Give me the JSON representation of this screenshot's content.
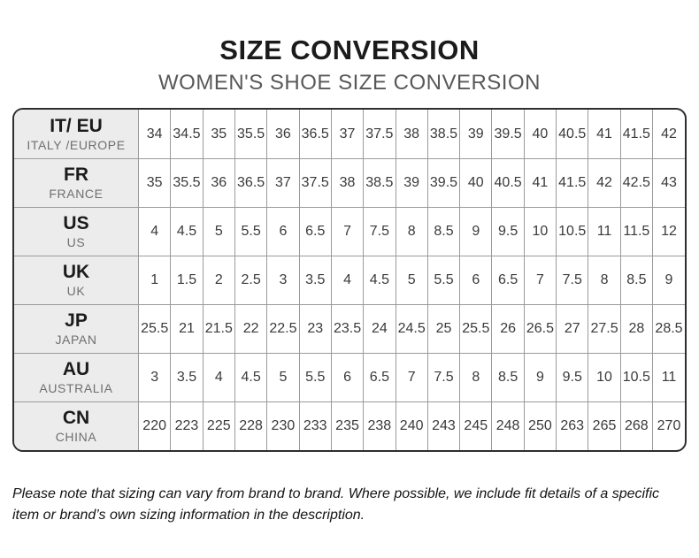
{
  "header": {
    "title": "SIZE CONVERSION",
    "subtitle": "WOMEN'S SHOE SIZE CONVERSION"
  },
  "chart_data": {
    "type": "table",
    "title": "SIZE CONVERSION",
    "subtitle": "WOMEN'S SHOE SIZE CONVERSION",
    "rows": [
      {
        "code": "IT/ EU",
        "region": "ITALY /EUROPE",
        "values": [
          "34",
          "34.5",
          "35",
          "35.5",
          "36",
          "36.5",
          "37",
          "37.5",
          "38",
          "38.5",
          "39",
          "39.5",
          "40",
          "40.5",
          "41",
          "41.5",
          "42"
        ]
      },
      {
        "code": "FR",
        "region": "FRANCE",
        "values": [
          "35",
          "35.5",
          "36",
          "36.5",
          "37",
          "37.5",
          "38",
          "38.5",
          "39",
          "39.5",
          "40",
          "40.5",
          "41",
          "41.5",
          "42",
          "42.5",
          "43"
        ]
      },
      {
        "code": "US",
        "region": "US",
        "values": [
          "4",
          "4.5",
          "5",
          "5.5",
          "6",
          "6.5",
          "7",
          "7.5",
          "8",
          "8.5",
          "9",
          "9.5",
          "10",
          "10.5",
          "11",
          "11.5",
          "12"
        ]
      },
      {
        "code": "UK",
        "region": "UK",
        "values": [
          "1",
          "1.5",
          "2",
          "2.5",
          "3",
          "3.5",
          "4",
          "4.5",
          "5",
          "5.5",
          "6",
          "6.5",
          "7",
          "7.5",
          "8",
          "8.5",
          "9"
        ]
      },
      {
        "code": "JP",
        "region": "JAPAN",
        "values": [
          "25.5",
          "21",
          "21.5",
          "22",
          "22.5",
          "23",
          "23.5",
          "24",
          "24.5",
          "25",
          "25.5",
          "26",
          "26.5",
          "27",
          "27.5",
          "28",
          "28.5"
        ]
      },
      {
        "code": "AU",
        "region": "AUSTRALIA",
        "values": [
          "3",
          "3.5",
          "4",
          "4.5",
          "5",
          "5.5",
          "6",
          "6.5",
          "7",
          "7.5",
          "8",
          "8.5",
          "9",
          "9.5",
          "10",
          "10.5",
          "11"
        ]
      },
      {
        "code": "CN",
        "region": "CHINA",
        "values": [
          "220",
          "223",
          "225",
          "228",
          "230",
          "233",
          "235",
          "238",
          "240",
          "243",
          "245",
          "248",
          "250",
          "263",
          "265",
          "268",
          "270"
        ]
      }
    ]
  },
  "footer": {
    "note": "Please note that sizing can vary from brand to brand. Where possible, we include fit details of a specific item or brand’s own sizing information in the description."
  },
  "colors": {
    "title_text": "#1b1b1b",
    "subtitle_text": "#585858",
    "header_cell_bg": "#ececec",
    "grid_line": "#9a9a9a",
    "outer_border": "#2e2e2e",
    "cell_text": "#3a3a3a",
    "region_text": "#6f6f6f"
  }
}
